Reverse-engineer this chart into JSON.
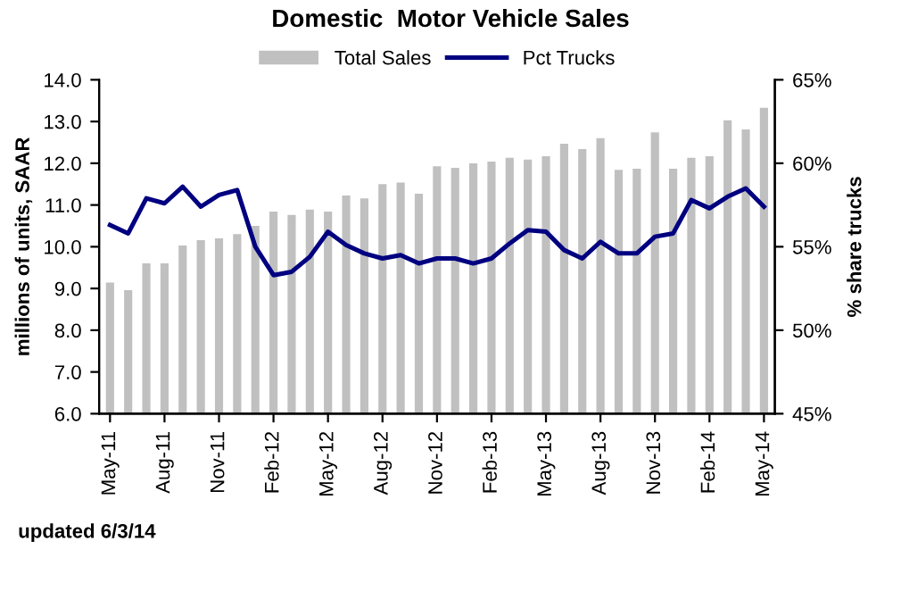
{
  "chart_data": {
    "type": "bar",
    "title": "Domestic  Motor Vehicle Sales",
    "categories": [
      "May-11",
      null,
      null,
      "Aug-11",
      null,
      null,
      "Nov-11",
      null,
      null,
      "Feb-12",
      null,
      null,
      "May-12",
      null,
      null,
      "Aug-12",
      null,
      null,
      "Nov-12",
      null,
      null,
      "Feb-13",
      null,
      null,
      "May-13",
      null,
      null,
      "Aug-13",
      null,
      null,
      "Nov-13",
      null,
      null,
      "Feb-14",
      null,
      null,
      "May-14"
    ],
    "series": [
      {
        "name": "Total Sales",
        "color": "#c0c0c0",
        "values": [
          9.14,
          8.96,
          9.6,
          9.6,
          10.03,
          10.16,
          10.2,
          10.3,
          10.5,
          10.84,
          10.76,
          10.89,
          10.84,
          11.23,
          11.16,
          11.5,
          11.54,
          11.27,
          11.93,
          11.89,
          12.0,
          12.04,
          12.13,
          12.09,
          12.17,
          12.47,
          12.34,
          12.6,
          11.84,
          11.87,
          12.74,
          11.87,
          12.13,
          12.17,
          13.03,
          12.81,
          13.33
        ]
      },
      {
        "name": "Pct Trucks",
        "type": "line",
        "axis": "y2",
        "color": "#000080",
        "values": [
          56.3,
          55.8,
          57.9,
          57.6,
          58.6,
          57.4,
          58.1,
          58.4,
          55.0,
          53.3,
          53.5,
          54.4,
          55.9,
          55.1,
          54.6,
          54.3,
          54.5,
          54.0,
          54.3,
          54.3,
          54.0,
          54.3,
          55.2,
          56.0,
          55.9,
          54.8,
          54.3,
          55.3,
          54.6,
          54.6,
          55.6,
          55.8,
          57.8,
          57.3,
          58.0,
          58.5,
          57.4
        ]
      }
    ],
    "ylabel": "millions of units, SAAR",
    "y2label": "% share trucks",
    "ylim": [
      6,
      14
    ],
    "yticks": [
      {
        "value": 6,
        "label": "6.0"
      },
      {
        "value": 7,
        "label": "7.0"
      },
      {
        "value": 8,
        "label": "8.0"
      },
      {
        "value": 9,
        "label": "9.0"
      },
      {
        "value": 10,
        "label": "10.0"
      },
      {
        "value": 11,
        "label": "11.0"
      },
      {
        "value": 12,
        "label": "12.0"
      },
      {
        "value": 13,
        "label": "13.0"
      },
      {
        "value": 14,
        "label": "14.0"
      }
    ],
    "y2lim": [
      45,
      65
    ],
    "y2ticks": [
      {
        "value": 45,
        "label": "45%"
      },
      {
        "value": 50,
        "label": "50%"
      },
      {
        "value": 55,
        "label": "55%"
      },
      {
        "value": 60,
        "label": "60%"
      },
      {
        "value": 65,
        "label": "65%"
      }
    ],
    "legend": "top",
    "grid": false,
    "marker": "none",
    "line_style": "solid",
    "annotations": [
      "updated 6/3/14"
    ]
  }
}
